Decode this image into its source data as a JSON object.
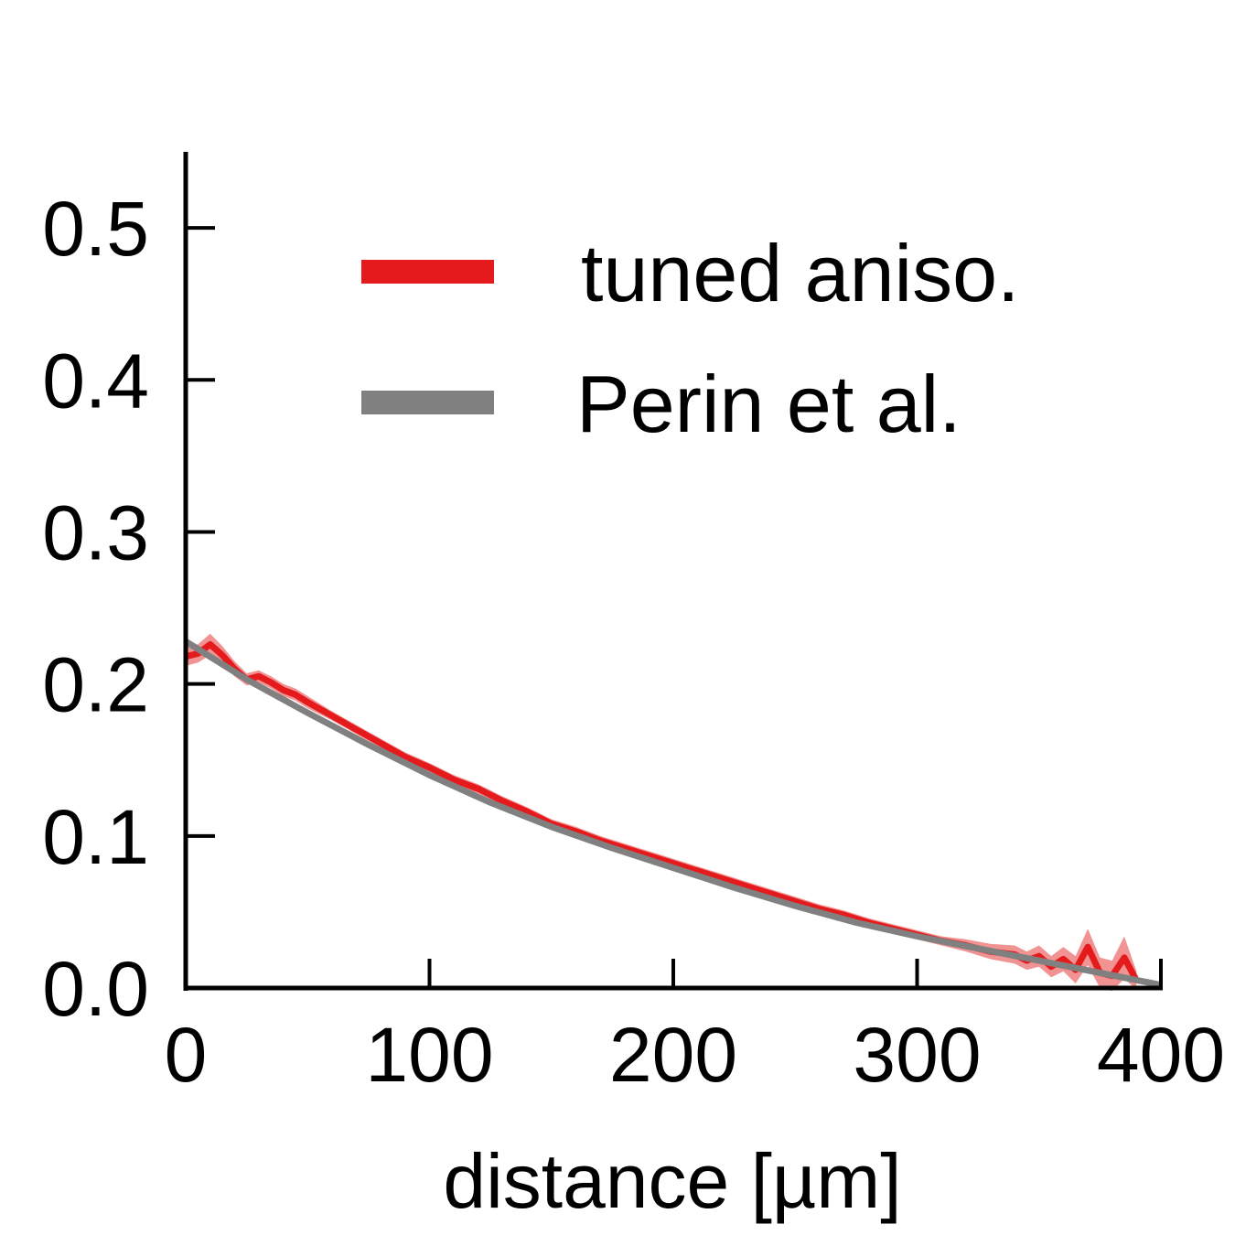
{
  "chart_data": {
    "type": "line",
    "title": "",
    "xlabel": "distance [µm]",
    "ylabel": "",
    "xlim": [
      0,
      400
    ],
    "ylim": [
      0,
      0.55
    ],
    "xticks": [
      0,
      100,
      200,
      300,
      400
    ],
    "yticks": [
      0.0,
      0.1,
      0.2,
      0.3,
      0.4,
      0.5
    ],
    "xtick_labels": [
      "0",
      "100",
      "200",
      "300",
      "400"
    ],
    "ytick_labels": [
      "0.0",
      "0.1",
      "0.2",
      "0.3",
      "0.4",
      "0.5"
    ],
    "grid": false,
    "legend_position": "top-right",
    "series": [
      {
        "name": "tuned aniso.",
        "color": "#e41a1c",
        "band_color": "#f08080",
        "x": [
          0,
          5,
          10,
          15,
          20,
          25,
          30,
          35,
          40,
          45,
          50,
          60,
          70,
          80,
          90,
          100,
          110,
          120,
          130,
          140,
          150,
          160,
          170,
          180,
          190,
          200,
          210,
          220,
          230,
          240,
          250,
          260,
          270,
          280,
          290,
          300,
          310,
          320,
          330,
          340,
          345,
          350,
          355,
          360,
          365,
          370,
          375,
          380,
          385,
          390
        ],
        "y": [
          0.218,
          0.22,
          0.226,
          0.219,
          0.21,
          0.203,
          0.205,
          0.201,
          0.196,
          0.193,
          0.188,
          0.179,
          0.17,
          0.161,
          0.152,
          0.145,
          0.137,
          0.131,
          0.123,
          0.116,
          0.108,
          0.103,
          0.097,
          0.092,
          0.087,
          0.082,
          0.077,
          0.072,
          0.067,
          0.062,
          0.057,
          0.052,
          0.048,
          0.043,
          0.039,
          0.035,
          0.031,
          0.028,
          0.024,
          0.022,
          0.018,
          0.021,
          0.014,
          0.019,
          0.012,
          0.027,
          0.01,
          0.008,
          0.02,
          0.005
        ],
        "err": [
          0.006,
          0.006,
          0.007,
          0.006,
          0.005,
          0.004,
          0.004,
          0.004,
          0.004,
          0.004,
          0.004,
          0.003,
          0.003,
          0.003,
          0.003,
          0.003,
          0.003,
          0.003,
          0.003,
          0.003,
          0.003,
          0.003,
          0.003,
          0.003,
          0.003,
          0.003,
          0.003,
          0.003,
          0.003,
          0.003,
          0.003,
          0.003,
          0.003,
          0.003,
          0.003,
          0.003,
          0.003,
          0.004,
          0.005,
          0.006,
          0.006,
          0.007,
          0.007,
          0.008,
          0.009,
          0.012,
          0.01,
          0.01,
          0.014,
          0.006
        ]
      },
      {
        "name": "Perin et al.",
        "color": "#808080",
        "x": [
          0,
          25,
          50,
          75,
          100,
          125,
          150,
          175,
          200,
          225,
          250,
          275,
          300,
          325,
          350,
          375,
          400
        ],
        "y": [
          0.228,
          0.203,
          0.181,
          0.16,
          0.14,
          0.122,
          0.106,
          0.092,
          0.079,
          0.066,
          0.054,
          0.043,
          0.034,
          0.026,
          0.018,
          0.01,
          0.002
        ]
      }
    ]
  }
}
